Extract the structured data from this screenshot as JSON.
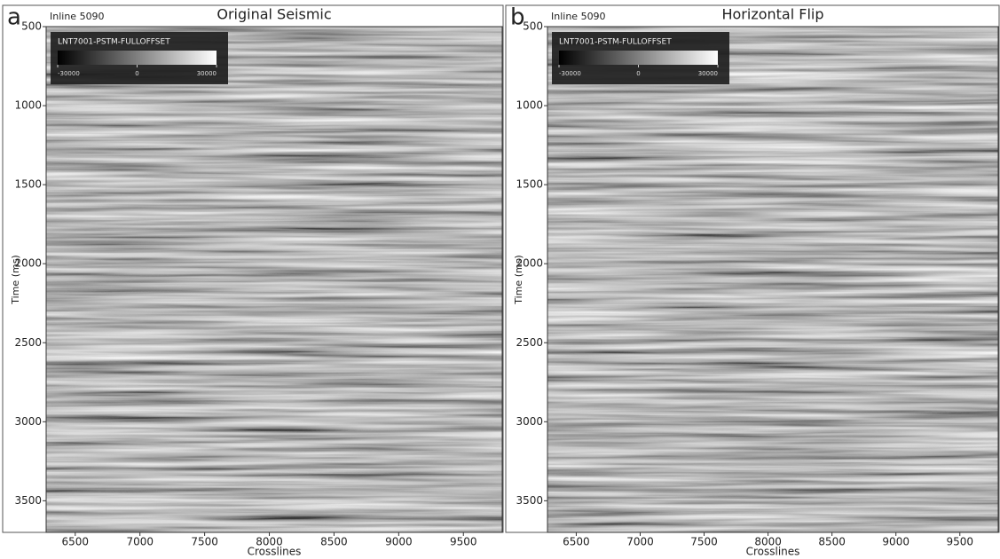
{
  "chart_data": [
    {
      "type": "seismic",
      "panel_label": "a",
      "subtitle": "Inline 5090",
      "title": "Original Seismic",
      "xlabel": "Crosslines",
      "ylabel": "Time (ms)",
      "xlim": [
        6275,
        9800
      ],
      "ylim": [
        500,
        3700
      ],
      "xticks": [
        6500,
        7000,
        7500,
        8000,
        8500,
        9000,
        9500
      ],
      "yticks": [
        500,
        1000,
        1500,
        2000,
        2500,
        3000,
        3500
      ],
      "colorbar": {
        "label": "LNT7001-PSTM-FULLOFFSET",
        "ticks": [
          -30000,
          0,
          30000
        ]
      },
      "flip": false
    },
    {
      "type": "seismic",
      "panel_label": "b",
      "subtitle": "Inline 5090",
      "title": "Horizontal Flip",
      "xlabel": "Crosslines",
      "ylabel": "Time (ms)",
      "xlim": [
        6275,
        9800
      ],
      "ylim": [
        500,
        3700
      ],
      "xticks": [
        6500,
        7000,
        7500,
        8000,
        8500,
        9000,
        9500
      ],
      "yticks": [
        500,
        1000,
        1500,
        2000,
        2500,
        3000,
        3500
      ],
      "colorbar": {
        "label": "LNT7001-PSTM-FULLOFFSET",
        "ticks": [
          -30000,
          0,
          30000
        ]
      },
      "flip": true
    }
  ]
}
